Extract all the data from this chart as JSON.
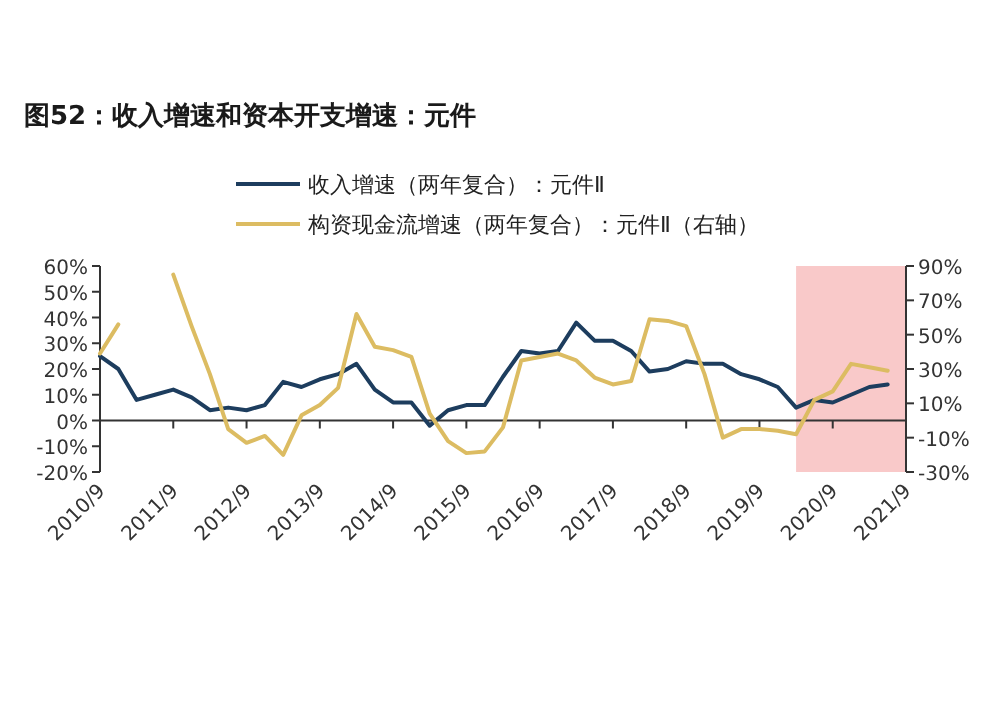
{
  "chart_data": {
    "type": "line",
    "title": "图52：收入增速和资本开支增速：元件",
    "x": [
      "2010-09",
      "2010-12",
      "2011-03",
      "2011-06",
      "2011-09",
      "2011-12",
      "2012-03",
      "2012-06",
      "2012-09",
      "2012-12",
      "2013-03",
      "2013-06",
      "2013-09",
      "2013-12",
      "2014-03",
      "2014-06",
      "2014-09",
      "2014-12",
      "2015-03",
      "2015-06",
      "2015-09",
      "2015-12",
      "2016-03",
      "2016-06",
      "2016-09",
      "2016-12",
      "2017-03",
      "2017-06",
      "2017-09",
      "2017-12",
      "2018-03",
      "2018-06",
      "2018-09",
      "2018-12",
      "2019-03",
      "2019-06",
      "2019-09",
      "2019-12",
      "2020-03",
      "2020-06",
      "2020-09",
      "2020-12",
      "2021-03",
      "2021-06"
    ],
    "series": [
      {
        "name": "收入增速（两年复合）：元件Ⅱ",
        "color": "#1d3d5e",
        "values": [
          25,
          20,
          8,
          10,
          12,
          9,
          4,
          5,
          4,
          6,
          15,
          13,
          16,
          18,
          22,
          12,
          7,
          7,
          -2,
          4,
          6,
          6,
          17,
          27,
          26,
          27,
          38,
          31,
          31,
          27,
          19,
          20,
          23,
          22,
          22,
          18,
          16,
          13,
          5,
          8,
          7,
          10,
          13,
          14
        ]
      },
      {
        "name": "构资现金流增速（两年复合）：元件Ⅱ（右轴）",
        "color": "#dcbc62",
        "axis": "y2",
        "values": [
          39,
          56,
          null,
          null,
          85,
          55,
          27,
          -5,
          -13,
          -9,
          -20,
          3,
          9,
          19,
          62,
          43,
          41,
          37,
          4,
          -12,
          -19,
          -18,
          -4,
          35,
          37,
          39,
          35,
          25,
          21,
          23,
          59,
          58,
          55,
          27,
          -10,
          -5,
          -5,
          -6,
          -8,
          12,
          17,
          33,
          31,
          29
        ]
      }
    ],
    "xlim": [
      "2010-09",
      "2021-09"
    ],
    "xticks": [
      {
        "value": "2010-09",
        "label": "2010/9"
      },
      {
        "value": "2011-09",
        "label": "2011/9"
      },
      {
        "value": "2012-09",
        "label": "2012/9"
      },
      {
        "value": "2013-09",
        "label": "2013/9"
      },
      {
        "value": "2014-09",
        "label": "2014/9"
      },
      {
        "value": "2015-09",
        "label": "2015/9"
      },
      {
        "value": "2016-09",
        "label": "2016/9"
      },
      {
        "value": "2017-09",
        "label": "2017/9"
      },
      {
        "value": "2018-09",
        "label": "2018/9"
      },
      {
        "value": "2019-09",
        "label": "2019/9"
      },
      {
        "value": "2020-09",
        "label": "2020/9"
      },
      {
        "value": "2021-09",
        "label": "2021/9"
      }
    ],
    "ylim": [
      -20,
      60
    ],
    "yticks": [
      {
        "value": -20,
        "label": "-20%"
      },
      {
        "value": -10,
        "label": "-10%"
      },
      {
        "value": 0,
        "label": "0%"
      },
      {
        "value": 10,
        "label": "10%"
      },
      {
        "value": 20,
        "label": "20%"
      },
      {
        "value": 30,
        "label": "30%"
      },
      {
        "value": 40,
        "label": "40%"
      },
      {
        "value": 50,
        "label": "50%"
      },
      {
        "value": 60,
        "label": "60%"
      }
    ],
    "y2lim": [
      -30,
      90
    ],
    "y2ticks": [
      {
        "value": -30,
        "label": "-30%"
      },
      {
        "value": -10,
        "label": "-10%"
      },
      {
        "value": 10,
        "label": "10%"
      },
      {
        "value": 30,
        "label": "30%"
      },
      {
        "value": 50,
        "label": "50%"
      },
      {
        "value": 70,
        "label": "70%"
      },
      {
        "value": 90,
        "label": "90%"
      }
    ],
    "bands": [
      {
        "axis": "x",
        "from": "2020-03",
        "to": "2021-09",
        "color": "#f9c9c9"
      }
    ],
    "legend": "top"
  }
}
